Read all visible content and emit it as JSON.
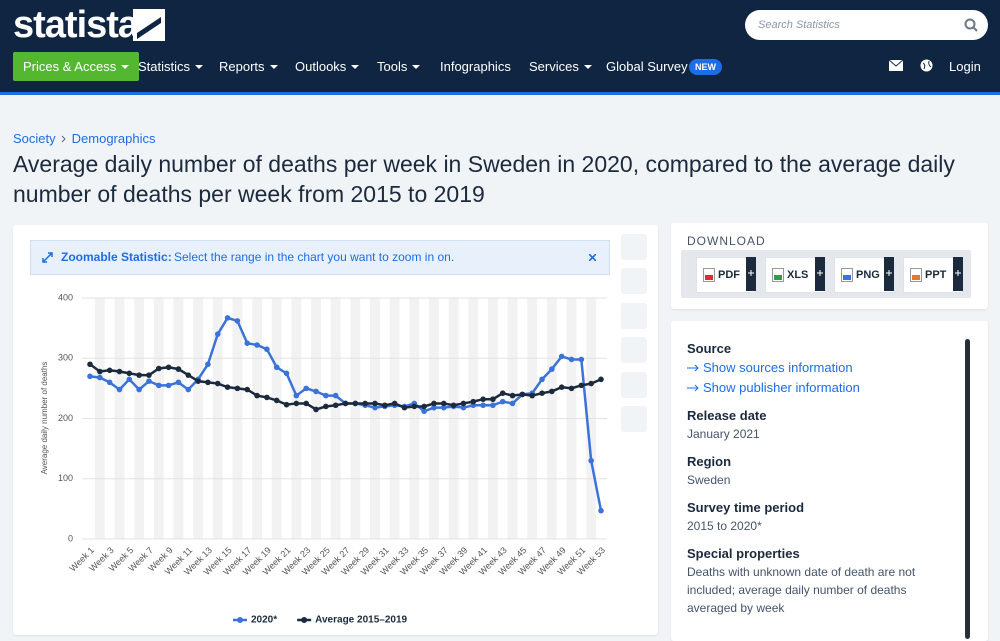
{
  "header": {
    "logo": "statista",
    "search_placeholder": "Search Statistics",
    "nav": [
      "Prices & Access",
      "Statistics",
      "Reports",
      "Outlooks",
      "Tools",
      "Infographics",
      "Services",
      "Global Survey"
    ],
    "badge": "NEW",
    "login": "Login"
  },
  "breadcrumb": [
    "Society",
    "Demographics"
  ],
  "title": "Average daily number of deaths per week in Sweden in 2020, compared to the average daily number of deaths per week from 2015 to 2019",
  "zoom_notice": {
    "label": "Zoomable Statistic:",
    "text": "Select the range in the chart you want to zoom in on."
  },
  "chart_data": {
    "type": "line",
    "y_label": "Average daily number of deaths",
    "categories": [
      "Week 1",
      null,
      "Week 3",
      null,
      "Week 5",
      null,
      "Week 7",
      null,
      "Week 9",
      null,
      "Week 11",
      null,
      "Week 13",
      null,
      "Week 15",
      null,
      "Week 17",
      null,
      "Week 19",
      null,
      "Week 21",
      null,
      "Week 23",
      null,
      "Week 25",
      null,
      "Week 27",
      null,
      "Week 29",
      null,
      "Week 31",
      null,
      "Week 33",
      null,
      "Week 35",
      null,
      "Week 37",
      null,
      "Week 39",
      null,
      "Week 41",
      null,
      "Week 43",
      null,
      "Week 45",
      null,
      "Week 47",
      null,
      "Week 49",
      null,
      "Week 51",
      null,
      "Week 53"
    ],
    "series": [
      {
        "name": "2020*",
        "color": "#3b73d8",
        "values": [
          270,
          268,
          260,
          248,
          265,
          248,
          262,
          255,
          255,
          260,
          248,
          265,
          290,
          340,
          367,
          362,
          325,
          322,
          315,
          285,
          275,
          238,
          250,
          245,
          238,
          238,
          225,
          225,
          222,
          218,
          220,
          222,
          220,
          225,
          212,
          218,
          218,
          220,
          218,
          222,
          222,
          222,
          228,
          225,
          240,
          242,
          265,
          282,
          303,
          298,
          298,
          130,
          47
        ]
      },
      {
        "name": "Average 2015–2019",
        "color": "#1b2a3c",
        "values": [
          290,
          278,
          280,
          278,
          275,
          272,
          272,
          283,
          285,
          282,
          272,
          262,
          260,
          258,
          252,
          250,
          248,
          238,
          235,
          230,
          223,
          225,
          225,
          215,
          220,
          222,
          225,
          225,
          225,
          225,
          222,
          225,
          218,
          220,
          220,
          225,
          225,
          222,
          225,
          228,
          232,
          232,
          242,
          238,
          240,
          238,
          242,
          245,
          252,
          250,
          255,
          258,
          265
        ]
      }
    ],
    "ylim": [
      0,
      400
    ],
    "yticks": [
      0,
      100,
      200,
      300,
      400
    ],
    "grid": true
  },
  "sidebar": {
    "download_heading": "DOWNLOAD",
    "downloads": [
      "PDF",
      "XLS",
      "PNG",
      "PPT"
    ],
    "source_heading": "Source",
    "source_links": [
      "Show sources information",
      "Show publisher information"
    ],
    "details": [
      {
        "label": "Release date",
        "value": "January 2021"
      },
      {
        "label": "Region",
        "value": "Sweden"
      },
      {
        "label": "Survey time period",
        "value": "2015 to 2020*"
      },
      {
        "label": "Special properties",
        "value": "Deaths with unknown date of death are not included; average daily number of deaths averaged by week"
      }
    ]
  }
}
